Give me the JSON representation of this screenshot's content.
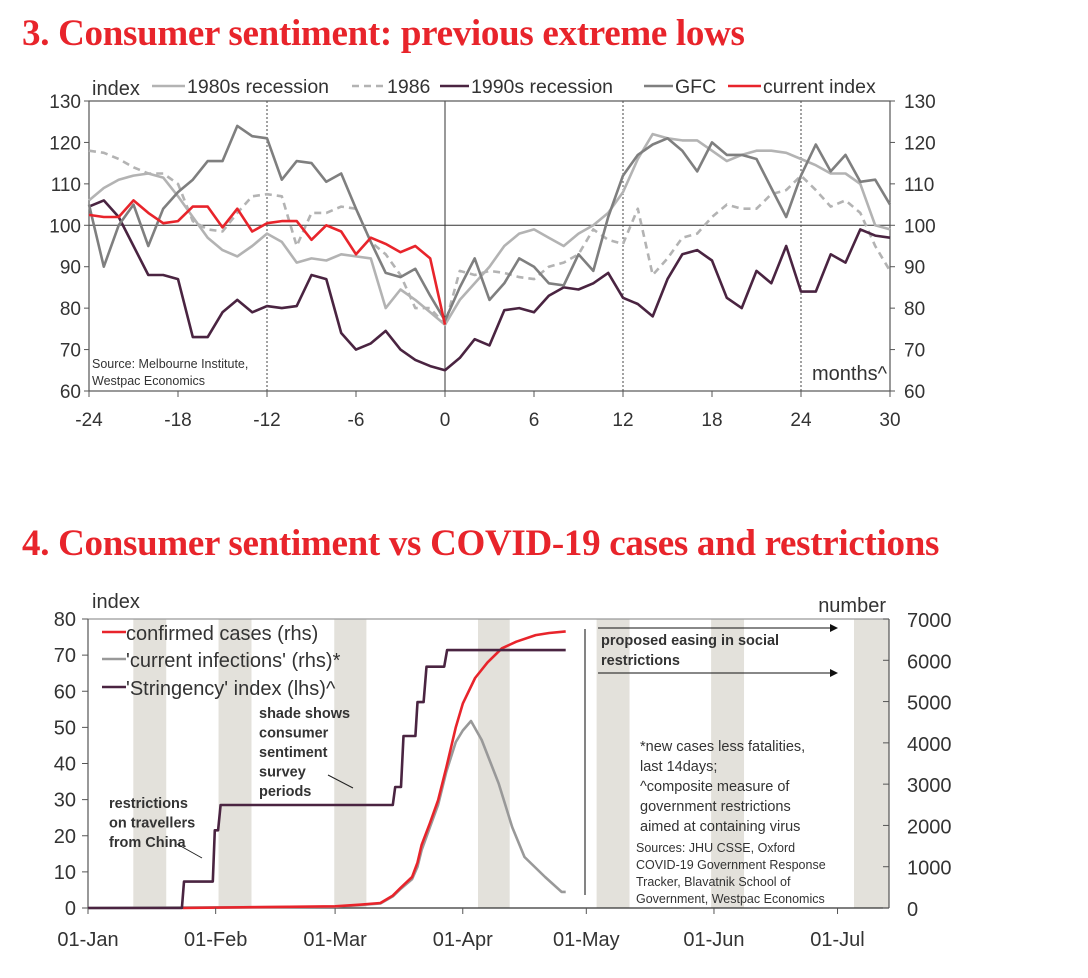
{
  "chart_data": [
    {
      "type": "line",
      "title": "3. Consumer sentiment: previous extreme lows",
      "ylabel": "index",
      "xlabel": "months^",
      "ylim": [
        60,
        130
      ],
      "xlim": [
        -24,
        30
      ],
      "yticks": [
        "60",
        "70",
        "80",
        "90",
        "100",
        "110",
        "120",
        "130"
      ],
      "xticks": [
        "-24",
        "-18",
        "-12",
        "-6",
        "0",
        "6",
        "12",
        "18",
        "24",
        "30"
      ],
      "grid": false,
      "reference_lines": {
        "horizontal": 100,
        "solid_vertical": [
          0
        ],
        "dashed_vertical": [
          -12,
          12,
          24
        ]
      },
      "legend_position": "top",
      "source": [
        "Source: Melbourne Institute,",
        "Westpac Economics"
      ],
      "x": [
        -24,
        -23,
        -22,
        -21,
        -20,
        -19,
        -18,
        -17,
        -16,
        -15,
        -14,
        -13,
        -12,
        -11,
        -10,
        -9,
        -8,
        -7,
        -6,
        -5,
        -4,
        -3,
        -2,
        -1,
        0,
        1,
        2,
        3,
        4,
        5,
        6,
        7,
        8,
        9,
        10,
        11,
        12,
        13,
        14,
        15,
        16,
        17,
        18,
        19,
        20,
        21,
        22,
        23,
        24,
        25,
        26,
        27,
        28,
        29,
        30
      ],
      "series": [
        {
          "name": "1980s recession",
          "color": "#b3b3b3",
          "dash": false,
          "values": [
            106,
            109,
            111,
            112,
            112.5,
            111.5,
            107,
            102,
            97,
            94,
            92.5,
            95,
            98,
            96,
            91,
            92,
            91.5,
            93,
            92.5,
            92,
            80,
            84.5,
            82,
            79,
            76,
            82,
            86,
            90,
            95,
            98,
            99,
            97,
            95,
            98,
            100,
            103,
            108,
            116,
            122,
            121,
            120.5,
            120.5,
            118,
            115.5,
            117,
            118,
            118,
            117.5,
            116,
            114.5,
            112.5,
            112.5,
            110,
            100,
            99
          ]
        },
        {
          "name": "1986",
          "color": "#b3b3b3",
          "dash": true,
          "values": [
            118,
            117.5,
            116,
            114,
            112.5,
            112.5,
            110,
            101,
            99,
            98.5,
            103,
            107,
            107.5,
            107,
            95,
            103,
            103,
            104.5,
            104,
            96,
            93,
            88,
            80,
            80,
            76,
            89,
            88,
            89,
            88.5,
            87.5,
            87,
            90,
            91,
            93,
            99,
            96.5,
            95.5,
            104,
            88,
            92,
            97,
            98,
            102,
            105,
            104,
            104,
            107.5,
            108.5,
            112,
            108.5,
            104.5,
            106,
            103,
            95,
            89
          ]
        },
        {
          "name": "1990s recession",
          "color": "#4a2441",
          "dash": false,
          "values": [
            104.5,
            106,
            102,
            95,
            88,
            88,
            87,
            73,
            73,
            79,
            82,
            79,
            80.5,
            80,
            80.5,
            88,
            87,
            74,
            70,
            71.5,
            74.5,
            70,
            67.5,
            66,
            65,
            68,
            72.5,
            71,
            79.5,
            80,
            79,
            83,
            85,
            84.5,
            86,
            88.5,
            82.5,
            81,
            78,
            87,
            93,
            94,
            91.5,
            82.5,
            80,
            89,
            86,
            95,
            84,
            84,
            93,
            91,
            99,
            97.5,
            97
          ]
        },
        {
          "name": "GFC",
          "color": "#7f7f7f",
          "dash": false,
          "values": [
            105,
            90,
            100,
            105,
            95,
            104,
            108,
            111,
            115.5,
            115.5,
            124,
            121.5,
            121,
            111,
            115.5,
            115,
            110.5,
            112.5,
            104,
            96,
            88.5,
            87.5,
            89.5,
            83,
            77,
            85,
            92,
            82,
            86,
            92,
            90,
            86,
            85.5,
            93,
            89,
            102,
            112,
            117,
            119.5,
            121,
            118,
            113,
            120,
            117,
            117,
            116,
            109,
            102,
            112,
            119.5,
            113,
            117,
            110.5,
            111,
            105
          ]
        },
        {
          "name": "current index",
          "color": "#e8242b",
          "dash": false,
          "values": [
            102.5,
            102,
            102,
            106,
            103,
            100.5,
            101,
            104.5,
            104.5,
            99.5,
            104,
            98.5,
            100.5,
            101,
            101,
            96.5,
            100,
            98.5,
            93,
            97,
            95.5,
            93.5,
            95,
            92,
            76,
            null,
            null,
            null,
            null,
            null,
            null,
            null,
            null,
            null,
            null,
            null,
            null,
            null,
            null,
            null,
            null,
            null,
            null,
            null,
            null,
            null,
            null,
            null,
            null,
            null,
            null,
            null,
            null,
            null,
            null
          ]
        }
      ]
    },
    {
      "type": "line",
      "title": "4. Consumer sentiment vs COVID-19 cases and restrictions",
      "ylabel": "index",
      "y2label": "number",
      "ylim": [
        0,
        80
      ],
      "y2lim": [
        0,
        7000
      ],
      "xlim_days_since_01_jan": [
        0,
        194.5
      ],
      "yticks": [
        "0",
        "10",
        "20",
        "30",
        "40",
        "50",
        "60",
        "70",
        "80"
      ],
      "y2ticks": [
        "0",
        "1000",
        "2000",
        "3000",
        "4000",
        "5000",
        "6000",
        "7000"
      ],
      "xticks": [
        {
          "label": "01-Jan",
          "day": 0
        },
        {
          "label": "01-Feb",
          "day": 31
        },
        {
          "label": "01-Mar",
          "day": 60
        },
        {
          "label": "01-Apr",
          "day": 91
        },
        {
          "label": "01-May",
          "day": 121
        },
        {
          "label": "01-Jun",
          "day": 152
        },
        {
          "label": "01-Jul",
          "day": 182
        }
      ],
      "legend_position": "top-left",
      "shaded_periods_days": [
        [
          11,
          19
        ],
        [
          31.7,
          39.7
        ],
        [
          59.8,
          67.6
        ],
        [
          94.7,
          102.4
        ],
        [
          123.5,
          131.5
        ],
        [
          151.3,
          159.3
        ],
        [
          186,
          194.5
        ]
      ],
      "shade_color": "#e3e1db",
      "series": [
        {
          "name": "confirmed cases (rhs)",
          "axis": "right",
          "color": "#e8242b",
          "points": [
            [
              23,
              0
            ],
            [
              40,
              20
            ],
            [
              60,
              40
            ],
            [
              66,
              80
            ],
            [
              71,
              120
            ],
            [
              74,
              300
            ],
            [
              76,
              500
            ],
            [
              78.7,
              750
            ],
            [
              80,
              1100
            ],
            [
              81,
              1525
            ],
            [
              83,
              2050
            ],
            [
              85,
              2610
            ],
            [
              87,
              3400
            ],
            [
              89.3,
              4380
            ],
            [
              91,
              4950
            ],
            [
              94,
              5570
            ],
            [
              97,
              5950
            ],
            [
              100.5,
              6290
            ],
            [
              104,
              6450
            ],
            [
              108.7,
              6610
            ],
            [
              112,
              6660
            ],
            [
              116,
              6700
            ]
          ]
        },
        {
          "name": "'current infections' (rhs)*",
          "axis": "right",
          "color": "#999999",
          "points": [
            [
              0,
              0
            ],
            [
              60,
              30
            ],
            [
              66,
              70
            ],
            [
              71,
              110
            ],
            [
              74,
              280
            ],
            [
              76,
              470
            ],
            [
              78.7,
              700
            ],
            [
              80,
              1000
            ],
            [
              81,
              1400
            ],
            [
              83,
              1950
            ],
            [
              85,
              2500
            ],
            [
              87,
              3300
            ],
            [
              89.3,
              4020
            ],
            [
              91,
              4300
            ],
            [
              93,
              4530
            ],
            [
              95.6,
              4070
            ],
            [
              99.7,
              3020
            ],
            [
              103,
              1960
            ],
            [
              106,
              1235
            ],
            [
              111,
              750
            ],
            [
              115,
              390
            ],
            [
              116,
              390
            ]
          ]
        },
        {
          "name": "'Stringency' index (lhs)^",
          "axis": "left",
          "color": "#4a2441",
          "points": [
            [
              0,
              0
            ],
            [
              22.8,
              0
            ],
            [
              23.3,
              7.3
            ],
            [
              30.3,
              7.3
            ],
            [
              30.8,
              21.5
            ],
            [
              31.6,
              21.5
            ],
            [
              32.2,
              28.5
            ],
            [
              74,
              28.5
            ],
            [
              74.6,
              33.5
            ],
            [
              76,
              33.5
            ],
            [
              76.6,
              47.6
            ],
            [
              79.5,
              47.6
            ],
            [
              80,
              57
            ],
            [
              81.5,
              57
            ],
            [
              82.2,
              66.8
            ],
            [
              86.5,
              66.8
            ],
            [
              87.2,
              71.4
            ],
            [
              116,
              71.4
            ]
          ]
        }
      ],
      "annotations": {
        "restrictions": [
          "restrictions",
          "on travellers",
          "from China"
        ],
        "shade": [
          "shade shows",
          "consumer",
          "sentiment",
          "survey",
          "periods"
        ],
        "easing": [
          "proposed easing in social",
          "restrictions"
        ],
        "notes": [
          "*new cases less fatalities,",
          "last 14days;",
          "^composite measure of",
          "government restrictions",
          "aimed at containing virus"
        ],
        "sources": [
          "Sources: JHU CSSE, Oxford",
          "COVID-19 Government Response",
          "Tracker, Blavatnik School of",
          "Government, Westpac Economics"
        ]
      }
    }
  ]
}
